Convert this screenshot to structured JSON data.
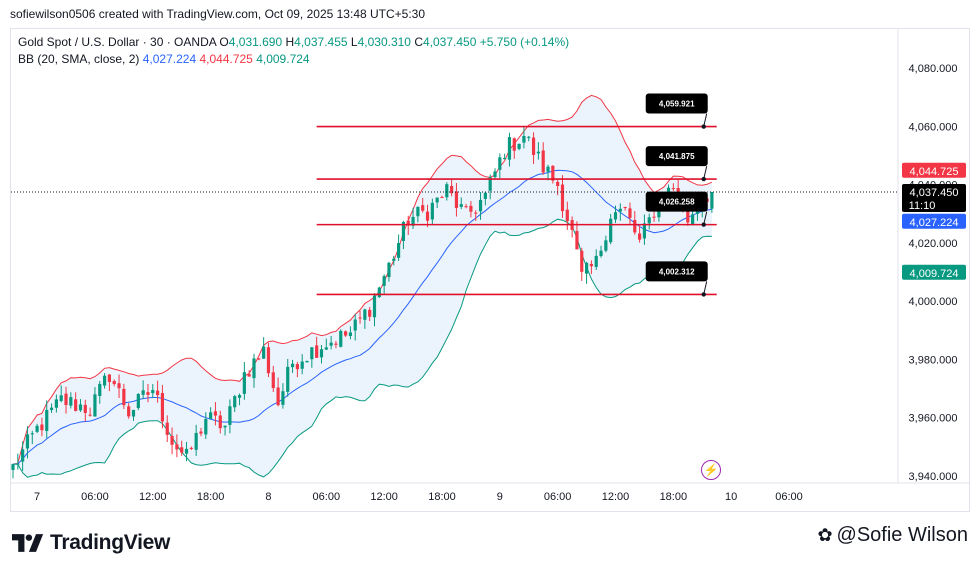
{
  "caption": "sofiewilson0506 created with TradingView.com, Oct 09, 2025 13:48 UTC+5:30",
  "legend": {
    "symbol": "Gold Spot / U.S. Dollar · 30 · OANDA",
    "o_label": "O",
    "o_value": "4,031.690",
    "h_label": "H",
    "h_value": "4,037.455",
    "l_label": "L",
    "l_value": "4,030.310",
    "c_label": "C",
    "c_value": "4,037.450",
    "change": "+5.750 (+0.14%)",
    "bb_label": "BB (20, SMA, close, 2)",
    "bb_basis": "4,027.224",
    "bb_upper": "4,044.725",
    "bb_lower": "4,009.724"
  },
  "footer": {
    "logo_text": "TradingView",
    "watermark": "@Sofie Wilson",
    "watermark_icon": "✿"
  },
  "chart_data": {
    "type": "candlestick",
    "symbol": "XAUUSD",
    "timeframe": "30",
    "ylim": [
      3935,
      4092
    ],
    "y_ticks": [
      {
        "value": 4080,
        "label": "4,080.000"
      },
      {
        "value": 4060,
        "label": "4,060.000"
      },
      {
        "value": 4040,
        "label": "4,040.000"
      },
      {
        "value": 4020,
        "label": "4,020.000"
      },
      {
        "value": 4000,
        "label": "4,000.000"
      },
      {
        "value": 3980,
        "label": "3,980.000"
      },
      {
        "value": 3960,
        "label": "3,960.000"
      },
      {
        "value": 3940,
        "label": "3,940.000"
      }
    ],
    "x_ticks": [
      {
        "bar": 5,
        "label": "7"
      },
      {
        "bar": 17,
        "label": "06:00"
      },
      {
        "bar": 29,
        "label": "12:00"
      },
      {
        "bar": 41,
        "label": "18:00"
      },
      {
        "bar": 53,
        "label": "8"
      },
      {
        "bar": 65,
        "label": "06:00"
      },
      {
        "bar": 77,
        "label": "12:00"
      },
      {
        "bar": 89,
        "label": "18:00"
      },
      {
        "bar": 101,
        "label": "9"
      },
      {
        "bar": 113,
        "label": "06:00"
      },
      {
        "bar": 125,
        "label": "12:00"
      },
      {
        "bar": 137,
        "label": "18:00"
      },
      {
        "bar": 149,
        "label": "10"
      },
      {
        "bar": 161,
        "label": "06:00"
      }
    ],
    "current_price": {
      "value": 4037.45,
      "label": "4,037.450",
      "countdown": "11:10"
    },
    "price_badges": [
      {
        "value": 4044.725,
        "label": "4,044.725",
        "color": "#f23645"
      },
      {
        "value": 4027.224,
        "label": "4,027.224",
        "color": "#2962ff"
      },
      {
        "value": 4009.724,
        "label": "4,009.724",
        "color": "#089981"
      }
    ],
    "horizontal_lines": [
      {
        "value": 4059.921,
        "label": "4,059.921",
        "from_bar": 63,
        "to_bar": 146
      },
      {
        "value": 4041.875,
        "label": "4,041.875",
        "from_bar": 63,
        "to_bar": 146
      },
      {
        "value": 4026.258,
        "label": "4,026.258",
        "from_bar": 63,
        "to_bar": 146
      },
      {
        "value": 4002.312,
        "label": "4,002.312",
        "from_bar": 63,
        "to_bar": 146
      }
    ],
    "colors": {
      "up": "#089981",
      "down": "#f23645",
      "basis": "#2962ff",
      "upper": "#f23645",
      "lower": "#089981",
      "fill": "#e8f2fb",
      "level": "#e0102b"
    },
    "anchors": [
      [
        0,
        3943
      ],
      [
        5,
        3956
      ],
      [
        10,
        3966
      ],
      [
        16,
        3963
      ],
      [
        20,
        3975
      ],
      [
        24,
        3962
      ],
      [
        29,
        3970
      ],
      [
        33,
        3952
      ],
      [
        36,
        3946
      ],
      [
        40,
        3960
      ],
      [
        44,
        3957
      ],
      [
        48,
        3975
      ],
      [
        52,
        3983
      ],
      [
        55,
        3965
      ],
      [
        58,
        3979
      ],
      [
        64,
        3985
      ],
      [
        70,
        3989
      ],
      [
        74,
        3998
      ],
      [
        78,
        4012
      ],
      [
        82,
        4028
      ],
      [
        86,
        4031
      ],
      [
        90,
        4038
      ],
      [
        94,
        4029
      ],
      [
        98,
        4036
      ],
      [
        102,
        4052
      ],
      [
        106,
        4057
      ],
      [
        110,
        4046
      ],
      [
        113,
        4040
      ],
      [
        116,
        4023
      ],
      [
        118,
        4008
      ],
      [
        121,
        4013
      ],
      [
        124,
        4030
      ],
      [
        127,
        4031
      ],
      [
        130,
        4020
      ],
      [
        134,
        4035
      ],
      [
        137,
        4039
      ],
      [
        140,
        4028
      ],
      [
        143,
        4036
      ],
      [
        145,
        4037.45
      ]
    ]
  }
}
